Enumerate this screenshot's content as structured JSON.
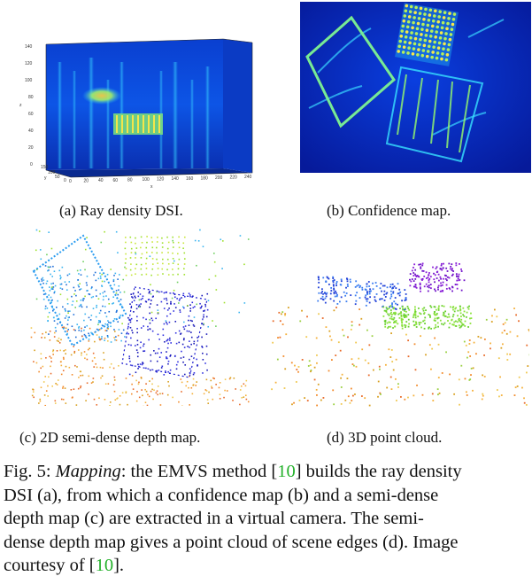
{
  "figure": {
    "panels": [
      {
        "id": "a",
        "caption": "(a) Ray density DSI."
      },
      {
        "id": "b",
        "caption": "(b) Confidence map."
      },
      {
        "id": "c",
        "caption": "(c) 2D semi-dense depth map."
      },
      {
        "id": "d",
        "caption": "(d) 3D point cloud."
      }
    ],
    "dsi_axes": {
      "z_label": "z",
      "x_label": "x",
      "y_label": "y",
      "z_ticks": [
        "140",
        "120",
        "100",
        "80",
        "60",
        "40",
        "20",
        "0"
      ],
      "x_ticks": [
        "0",
        "20",
        "40",
        "60",
        "80",
        "100",
        "120",
        "140",
        "160",
        "180",
        "200",
        "220",
        "240"
      ],
      "y_ticks": [
        "150",
        "100",
        "50",
        "0"
      ]
    },
    "caption": {
      "label": "Fig. 5:",
      "title": "Mapping",
      "line1_a": ": the EMVS method [",
      "cite1": "10",
      "line1_b": "] builds the ray density",
      "line2": "DSI (a), from which a confidence map (b) and a semi-dense",
      "line3": "depth map (c) are extracted in a virtual camera. The semi-",
      "line4": "dense depth map gives a point cloud of scene edges (d). Image",
      "line5_a": "courtesy of [",
      "cite2": "10",
      "line5_b": "]."
    }
  }
}
